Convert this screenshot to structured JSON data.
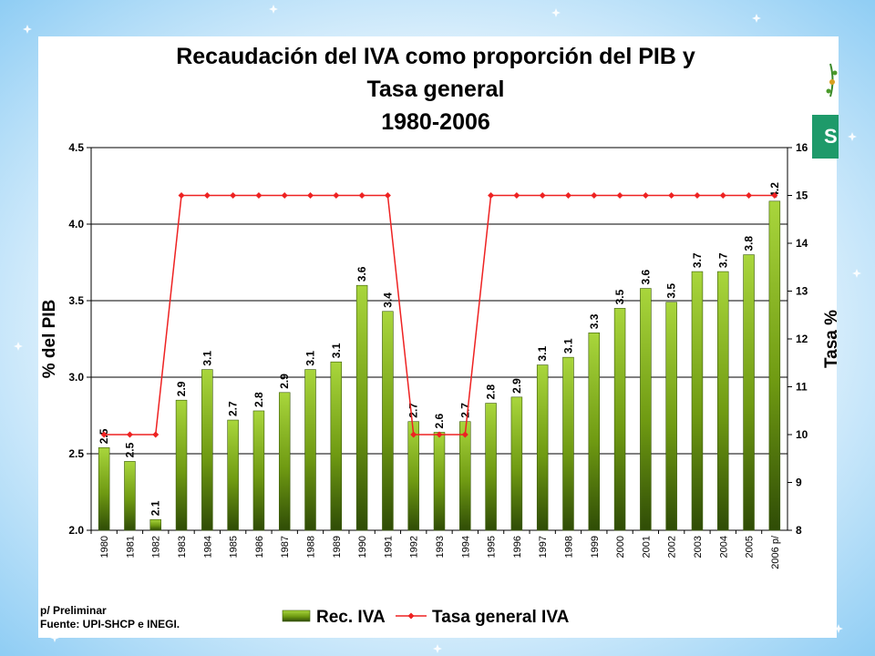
{
  "chart_data": {
    "type": "bar",
    "title_lines": [
      "Recaudación del IVA como proporción del PIB y",
      "Tasa general",
      "1980-2006"
    ],
    "ylabel": "% del PIB",
    "y2label": "Tasa %",
    "ylim": [
      2.0,
      4.5
    ],
    "y2lim": [
      8,
      16
    ],
    "y_ticks": [
      "2.0",
      "2.5",
      "3.0",
      "3.5",
      "4.0",
      "4.5"
    ],
    "y2_ticks": [
      "8",
      "9",
      "10",
      "11",
      "12",
      "13",
      "14",
      "15",
      "16"
    ],
    "grid": true,
    "categories": [
      "1980",
      "1981",
      "1982",
      "1983",
      "1984",
      "1985",
      "1986",
      "1987",
      "1988",
      "1989",
      "1990",
      "1991",
      "1992",
      "1993",
      "1994",
      "1995",
      "1996",
      "1997",
      "1998",
      "1999",
      "2000",
      "2001",
      "2002",
      "2003",
      "2004",
      "2005",
      "2006 p/"
    ],
    "series": [
      {
        "name": "Rec. IVA",
        "axis": "left",
        "values": [
          2.54,
          2.45,
          2.07,
          2.85,
          3.05,
          2.72,
          2.78,
          2.9,
          3.05,
          3.1,
          3.6,
          3.43,
          2.71,
          2.64,
          2.71,
          2.83,
          2.87,
          3.08,
          3.13,
          3.29,
          3.45,
          3.58,
          3.49,
          3.69,
          3.69,
          3.8,
          4.15
        ],
        "labels": [
          "2.5",
          "2.5",
          "2.1",
          "2.9",
          "3.1",
          "2.7",
          "2.8",
          "2.9",
          "3.1",
          "3.1",
          "3.6",
          "3.4",
          "2.7",
          "2.6",
          "2.7",
          "2.8",
          "2.9",
          "3.1",
          "3.1",
          "3.3",
          "3.5",
          "3.6",
          "3.5",
          "3.7",
          "3.7",
          "3.8",
          "4.2"
        ],
        "color": "#6f9a12"
      },
      {
        "name": "Tasa general IVA",
        "axis": "right",
        "values": [
          10,
          10,
          10,
          15,
          15,
          15,
          15,
          15,
          15,
          15,
          15,
          15,
          10,
          10,
          10,
          15,
          15,
          15,
          15,
          15,
          15,
          15,
          15,
          15,
          15,
          15,
          15
        ],
        "color": "#ee2222"
      }
    ],
    "legend_position": "bottom",
    "notes": [
      "p/ Preliminar",
      "Fuente: UPI-SHCP e INEGI."
    ]
  },
  "logo": {
    "letter": "S",
    "color": "#1e9a6a"
  }
}
